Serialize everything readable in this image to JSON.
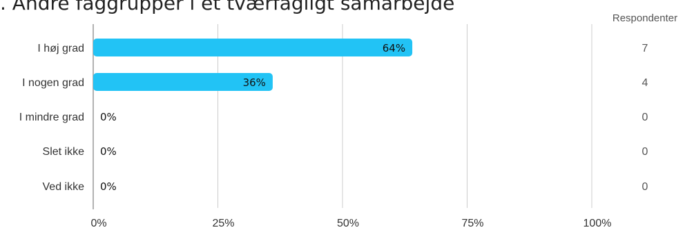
{
  "title": ". Andre faggrupper i et tværfagligt samarbejde",
  "chart_data": {
    "type": "bar",
    "orientation": "horizontal",
    "title": ". Andre faggrupper i et tværfagligt samarbejde",
    "categories": [
      "I høj grad",
      "I nogen grad",
      "I mindre grad",
      "Slet ikke",
      "Ved ikke"
    ],
    "values": [
      64,
      36,
      0,
      0,
      0
    ],
    "value_labels": [
      "64%",
      "36%",
      "0%",
      "0%",
      "0%"
    ],
    "respondents_header": "Respondenter",
    "respondents": [
      "7",
      "4",
      "0",
      "0",
      "0"
    ],
    "xlim": [
      0,
      100
    ],
    "xticks": [
      "0%",
      "25%",
      "50%",
      "75%",
      "100%"
    ],
    "grid": true,
    "bar_color": "#22c3f5",
    "grid_color": "#cccccc",
    "axis_color": "#999999"
  }
}
